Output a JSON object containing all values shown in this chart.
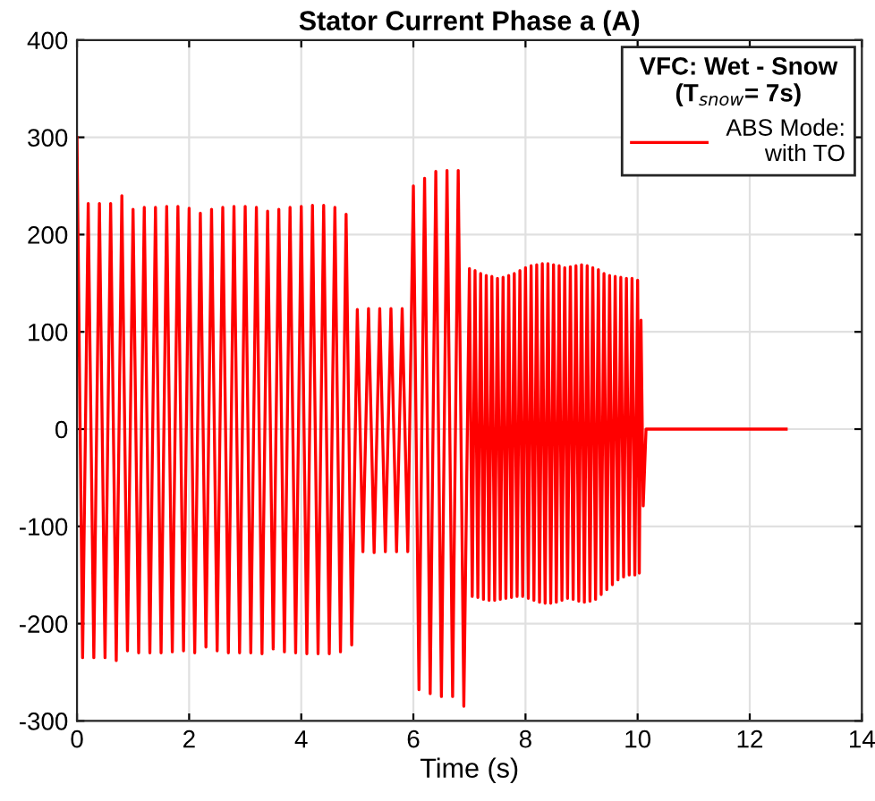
{
  "chart_data": {
    "type": "line",
    "title": "Stator Current Phase a (A)",
    "xlabel": "Time (s)",
    "legend_title": "VFC: Wet - Snow\n(T$_{snow}$= 7s)",
    "legend": "top right",
    "grid": true,
    "xlim": [
      0,
      14
    ],
    "xticks": [
      0,
      2,
      4,
      6,
      8,
      10,
      12,
      14
    ],
    "ylim": [
      -300,
      400
    ],
    "yticks": [
      -300,
      -200,
      -100,
      0,
      100,
      200,
      300,
      400
    ],
    "series": [
      {
        "name": "ABS Mode:\nwith TO",
        "color": "#ff0000",
        "x": [
          0.0,
          0.1,
          0.2,
          0.3,
          0.4,
          0.5,
          0.6,
          0.7,
          0.8,
          0.9,
          1.0,
          1.1,
          1.2,
          1.3,
          1.4,
          1.5,
          1.6,
          1.7,
          1.8,
          1.9,
          2.0,
          2.1,
          2.2,
          2.3,
          2.4,
          2.5,
          2.6,
          2.7,
          2.8,
          2.9,
          3.0,
          3.1,
          3.2,
          3.3,
          3.4,
          3.5,
          3.6,
          3.7,
          3.8,
          3.9,
          4.0,
          4.1,
          4.2,
          4.3,
          4.4,
          4.5,
          4.6,
          4.7,
          4.8,
          4.9,
          5.0,
          5.1,
          5.2,
          5.3,
          5.4,
          5.5,
          5.6,
          5.7,
          5.8,
          5.9,
          6.0,
          6.1,
          6.2,
          6.3,
          6.4,
          6.5,
          6.6,
          6.7,
          6.8,
          6.9,
          7.0,
          7.05,
          7.1,
          7.15,
          7.2,
          7.25,
          7.3,
          7.35,
          7.4,
          7.45,
          7.5,
          7.55,
          7.6,
          7.65,
          7.7,
          7.75,
          7.8,
          7.85,
          7.9,
          7.95,
          8.0,
          8.05,
          8.1,
          8.15,
          8.2,
          8.25,
          8.3,
          8.35,
          8.4,
          8.45,
          8.5,
          8.55,
          8.6,
          8.65,
          8.7,
          8.75,
          8.8,
          8.85,
          8.9,
          8.95,
          9.0,
          9.05,
          9.1,
          9.15,
          9.2,
          9.25,
          9.3,
          9.35,
          9.4,
          9.45,
          9.5,
          9.55,
          9.6,
          9.65,
          9.7,
          9.75,
          9.8,
          9.85,
          9.9,
          9.95,
          10.0,
          10.03,
          10.06,
          10.1,
          10.15,
          12.65
        ],
        "values": [
          300,
          -235,
          232,
          -235,
          232,
          -235,
          232,
          -238,
          240,
          -228,
          226,
          -230,
          228,
          -230,
          228,
          -230,
          229,
          -229,
          229,
          -228,
          227,
          -230,
          222,
          -224,
          226,
          -228,
          228,
          -230,
          229,
          -230,
          229,
          -230,
          228,
          -231,
          224,
          -226,
          226,
          -229,
          228,
          -230,
          229,
          -231,
          230,
          -231,
          230,
          -231,
          228,
          -229,
          221,
          -222,
          123,
          -126,
          124,
          -127,
          124,
          -126,
          124,
          -126,
          124,
          -126,
          250,
          -268,
          258,
          -272,
          265,
          -275,
          266,
          -275,
          266,
          -285,
          165,
          -172,
          163,
          -173,
          160,
          -175,
          158,
          -176,
          157,
          -176,
          155,
          -175,
          156,
          -174,
          158,
          -173,
          160,
          -172,
          163,
          -172,
          166,
          -174,
          168,
          -176,
          169,
          -178,
          170,
          -179,
          170,
          -179,
          169,
          -178,
          168,
          -176,
          166,
          -174,
          167,
          -175,
          168,
          -177,
          169,
          -178,
          168,
          -177,
          166,
          -175,
          164,
          -170,
          160,
          -165,
          158,
          -160,
          157,
          -155,
          156,
          -152,
          155,
          -150,
          155,
          -150,
          153,
          -148,
          112,
          -79,
          0,
          0
        ]
      }
    ]
  }
}
